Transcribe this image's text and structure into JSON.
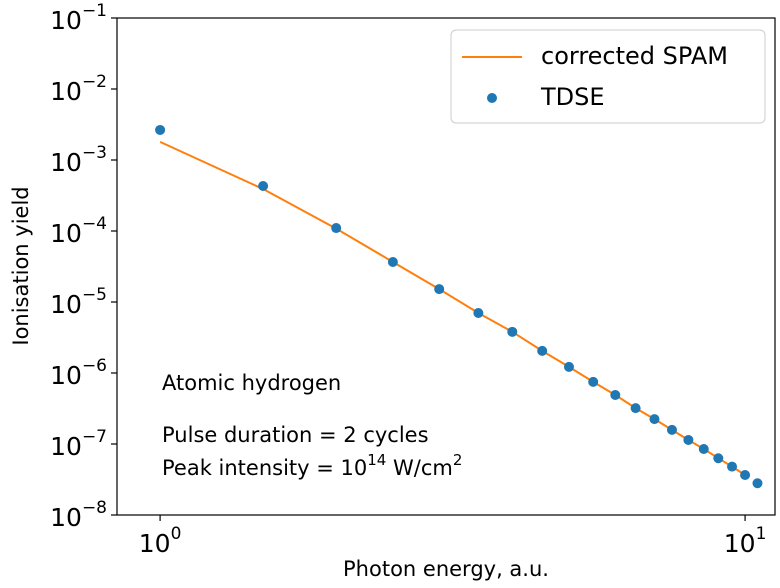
{
  "chart_data": {
    "type": "scatter",
    "xlabel": "Photon energy, a.u.",
    "ylabel": "Ionisation yield",
    "xscale": "log",
    "yscale": "log",
    "xlim": [
      0.844,
      11.25
    ],
    "ylim": [
      1e-08,
      0.1
    ],
    "xticks": [
      {
        "value": 1,
        "label": "10",
        "exponent": "0"
      },
      {
        "value": 10,
        "label": "10",
        "exponent": "1"
      }
    ],
    "yticks": [
      {
        "value": 1e-08,
        "label": "10",
        "exponent": "−8"
      },
      {
        "value": 1e-07,
        "label": "10",
        "exponent": "−7"
      },
      {
        "value": 1e-06,
        "label": "10",
        "exponent": "−6"
      },
      {
        "value": 1e-05,
        "label": "10",
        "exponent": "−5"
      },
      {
        "value": 0.0001,
        "label": "10",
        "exponent": "−4"
      },
      {
        "value": 0.001,
        "label": "10",
        "exponent": "−3"
      },
      {
        "value": 0.01,
        "label": "10",
        "exponent": "−2"
      },
      {
        "value": 0.1,
        "label": "10",
        "exponent": "−1"
      }
    ],
    "legend": "upper right",
    "series": [
      {
        "name": "corrected SPAM",
        "kind": "line",
        "color": "#ff7f0e",
        "x": [
          1,
          1.5,
          2,
          2.5,
          3,
          3.5,
          4,
          4.5,
          5,
          5.5,
          6,
          6.5,
          7,
          7.5,
          8,
          8.5,
          9,
          9.5,
          10
        ],
        "values": [
          0.0018,
          0.00039,
          0.000108,
          3.66e-05,
          1.52e-05,
          7e-06,
          3.8e-06,
          2.05e-06,
          1.22e-06,
          7.5e-07,
          4.9e-07,
          3.2e-07,
          2.24e-07,
          1.58e-07,
          1.14e-07,
          8.5e-08,
          6.3e-08,
          4.8e-08,
          3.66e-08
        ]
      },
      {
        "name": "TDSE",
        "kind": "scatter",
        "color": "#1f77b4",
        "x": [
          1,
          1.5,
          2,
          2.5,
          3,
          3.5,
          4,
          4.5,
          5,
          5.5,
          6,
          6.5,
          7,
          7.5,
          8,
          8.5,
          9,
          9.5,
          10,
          10.5
        ],
        "values": [
          0.00265,
          0.00043,
          0.00011,
          3.66e-05,
          1.52e-05,
          7e-06,
          3.8e-06,
          2.05e-06,
          1.22e-06,
          7.5e-07,
          4.9e-07,
          3.2e-07,
          2.24e-07,
          1.58e-07,
          1.14e-07,
          8.5e-08,
          6.3e-08,
          4.8e-08,
          3.66e-08,
          2.8e-08
        ]
      }
    ],
    "annotations": [
      [
        "Atomic hydrogen"
      ],
      [
        "Pulse duration = 2 cycles"
      ],
      [
        "Peak intensity = 10",
        "14",
        " W/cm",
        "2"
      ]
    ]
  }
}
